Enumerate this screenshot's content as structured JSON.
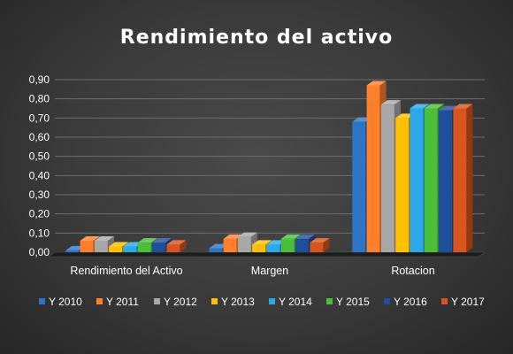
{
  "chart_data": {
    "type": "bar",
    "title": "Rendimiento del activo",
    "categories": [
      "Rendimiento del Activo",
      "Margen",
      "Rotacion"
    ],
    "series": [
      {
        "name": "Y 2010",
        "color": "#2e75c6",
        "values": [
          0.01,
          0.02,
          0.68
        ]
      },
      {
        "name": "Y 2011",
        "color": "#ff7f2a",
        "values": [
          0.06,
          0.07,
          0.87
        ]
      },
      {
        "name": "Y 2012",
        "color": "#a8a8a8",
        "values": [
          0.06,
          0.08,
          0.77
        ]
      },
      {
        "name": "Y 2013",
        "color": "#ffc000",
        "values": [
          0.03,
          0.04,
          0.7
        ]
      },
      {
        "name": "Y 2014",
        "color": "#2aa8e8",
        "values": [
          0.03,
          0.04,
          0.75
        ]
      },
      {
        "name": "Y 2015",
        "color": "#4cbf3a",
        "values": [
          0.05,
          0.07,
          0.75
        ]
      },
      {
        "name": "Y 2016",
        "color": "#1f4e9a",
        "values": [
          0.05,
          0.07,
          0.74
        ]
      },
      {
        "name": "Y 2017",
        "color": "#d8551f",
        "values": [
          0.04,
          0.05,
          0.75
        ]
      }
    ],
    "ylim": [
      0,
      0.9
    ],
    "yticks": [
      "0,00",
      "0,10",
      "0,20",
      "0,30",
      "0,40",
      "0,50",
      "0,60",
      "0,70",
      "0,80",
      "0,90"
    ],
    "grid": true,
    "legend_position": "bottom"
  }
}
